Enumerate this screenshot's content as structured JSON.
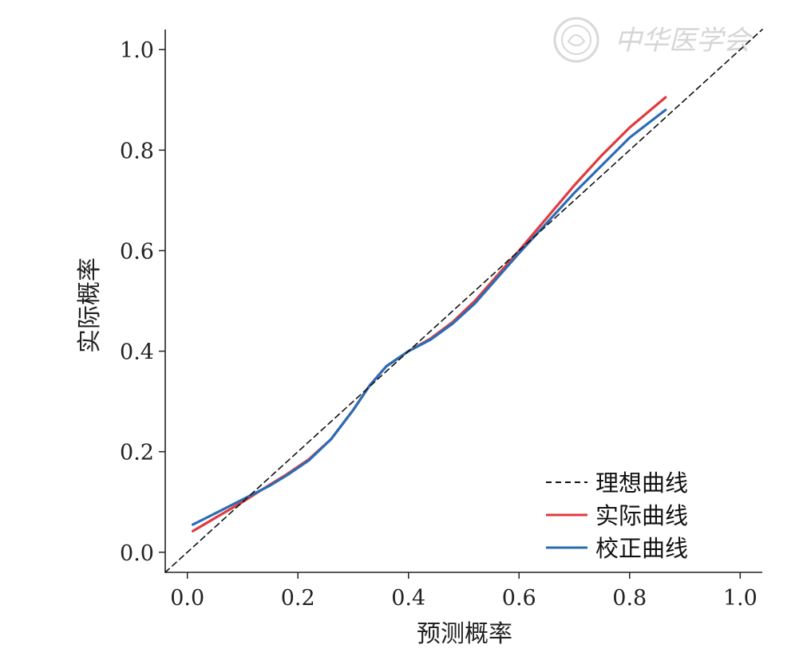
{
  "chart_data": {
    "type": "line",
    "xlabel": "预测概率",
    "ylabel": "实际概率",
    "xlim": [
      -0.04,
      1.04
    ],
    "ylim": [
      -0.04,
      1.04
    ],
    "xticks": [
      0.0,
      0.2,
      0.4,
      0.6,
      0.8,
      1.0
    ],
    "yticks": [
      0.0,
      0.2,
      0.4,
      0.6,
      0.8,
      1.0
    ],
    "xtick_labels": [
      "0.0",
      "0.2",
      "0.4",
      "0.6",
      "0.8",
      "1.0"
    ],
    "ytick_labels": [
      "0.0",
      "0.2",
      "0.4",
      "0.6",
      "0.8",
      "1.0"
    ],
    "grid": false,
    "legend_position": "bottom-right",
    "series": [
      {
        "name": "理想曲线",
        "color": "#111111",
        "style": "dashed",
        "x": [
          -0.04,
          1.04
        ],
        "y": [
          -0.04,
          1.04
        ]
      },
      {
        "name": "实际曲线",
        "color": "#e03a3e",
        "style": "solid",
        "x": [
          0.01,
          0.05,
          0.1,
          0.15,
          0.18,
          0.22,
          0.26,
          0.3,
          0.33,
          0.36,
          0.4,
          0.44,
          0.48,
          0.52,
          0.56,
          0.6,
          0.65,
          0.7,
          0.75,
          0.8,
          0.865
        ],
        "y": [
          0.042,
          0.068,
          0.1,
          0.135,
          0.155,
          0.185,
          0.225,
          0.283,
          0.332,
          0.37,
          0.4,
          0.425,
          0.458,
          0.5,
          0.55,
          0.6,
          0.665,
          0.73,
          0.79,
          0.845,
          0.905
        ]
      },
      {
        "name": "校正曲线",
        "color": "#2a6db5",
        "style": "solid",
        "x": [
          0.01,
          0.05,
          0.1,
          0.15,
          0.18,
          0.22,
          0.26,
          0.3,
          0.33,
          0.36,
          0.4,
          0.44,
          0.48,
          0.52,
          0.56,
          0.6,
          0.65,
          0.7,
          0.75,
          0.8,
          0.865
        ],
        "y": [
          0.055,
          0.077,
          0.105,
          0.133,
          0.153,
          0.183,
          0.225,
          0.283,
          0.332,
          0.37,
          0.4,
          0.423,
          0.455,
          0.495,
          0.545,
          0.595,
          0.655,
          0.715,
          0.77,
          0.825,
          0.88
        ]
      }
    ]
  },
  "watermark": {
    "text": "中华医学会",
    "color": "#d6d6d6"
  }
}
